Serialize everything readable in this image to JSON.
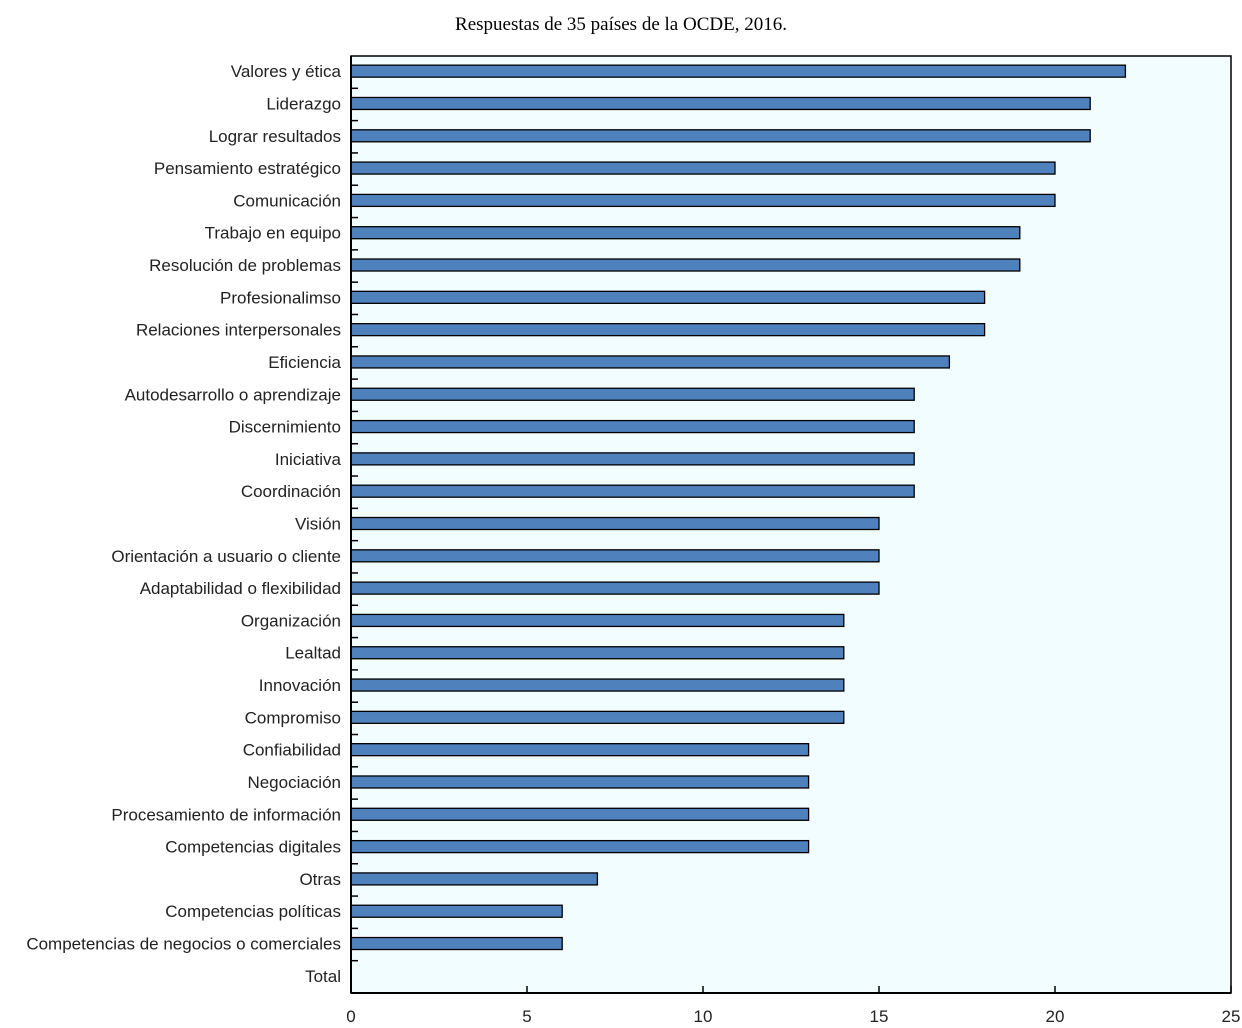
{
  "chart_data": {
    "type": "bar",
    "orientation": "horizontal",
    "title": "",
    "subtitle": "Respuestas de 35 países de la OCDE, 2016.",
    "xlabel": "",
    "ylabel": "",
    "xlim": [
      0,
      25
    ],
    "xticks": [
      "0",
      "5",
      "10",
      "15",
      "20",
      "25"
    ],
    "grid": false,
    "legend": "none",
    "bar_color": "#4f81bd",
    "plot_background": "#f2fdff",
    "categories": [
      "Valores y ética",
      "Liderazgo",
      "Lograr resultados",
      "Pensamiento estratégico",
      "Comunicación",
      "Trabajo en equipo",
      "Resolución de problemas",
      "Profesionalimso",
      "Relaciones interpersonales",
      "Eficiencia",
      "Autodesarrollo o aprendizaje",
      "Discernimiento",
      "Iniciativa",
      "Coordinación",
      "Visión",
      "Orientación a usuario o cliente",
      "Adaptabilidad o flexibilidad",
      "Organización",
      "Lealtad",
      "Innovación",
      "Compromiso",
      "Confiabilidad",
      "Negociación",
      "Procesamiento de información",
      "Competencias digitales",
      "Otras",
      "Competencias políticas",
      "Competencias de negocios o comerciales",
      "Total"
    ],
    "values": [
      22,
      21,
      21,
      20,
      20,
      19,
      19,
      18,
      18,
      17,
      16,
      16,
      16,
      16,
      15,
      15,
      15,
      14,
      14,
      14,
      14,
      13,
      13,
      13,
      13,
      7,
      6,
      6,
      null
    ]
  }
}
